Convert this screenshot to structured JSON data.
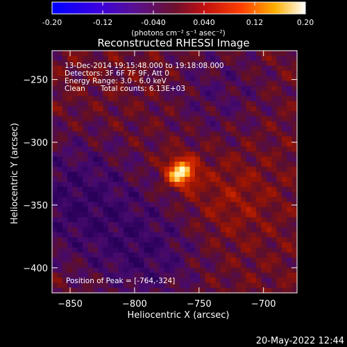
{
  "colorbar": {
    "ticks": [
      "-0.20",
      "-0.12",
      "-0.040",
      "0.040",
      "0.12",
      "0.20"
    ],
    "min": -0.2,
    "max": 0.2,
    "units": "(photons cm⁻² s⁻¹ asec⁻²)"
  },
  "title": "Reconstructed RHESSI Image",
  "info": {
    "time_range": "13-Dec-2014 19:15:48.000 to 19:18:08.000",
    "detectors": "Detectors: 3F 6F 7F 9F, Att 0",
    "energy": "Energy Range: 3.0 - 6.0 keV",
    "clean_label": "Clean",
    "total_counts": "Total counts: 6.13E+03"
  },
  "peak_label": "Position of Peak = [-764,-324]",
  "footer_date": "20-May-2022 12:44",
  "chart_data": {
    "type": "heatmap",
    "title": "Reconstructed RHESSI Image",
    "xlabel": "Heliocentric X (arcsec)",
    "ylabel": "Heliocentric Y (arcsec)",
    "xlim": [
      -864,
      -674
    ],
    "ylim": [
      -420,
      -227
    ],
    "xticks": [
      -850,
      -800,
      -750,
      -700
    ],
    "yticks": [
      -250,
      -300,
      -350,
      -400
    ],
    "colormap": "red-temperature",
    "peak": {
      "x": -764,
      "y": -324
    }
  }
}
